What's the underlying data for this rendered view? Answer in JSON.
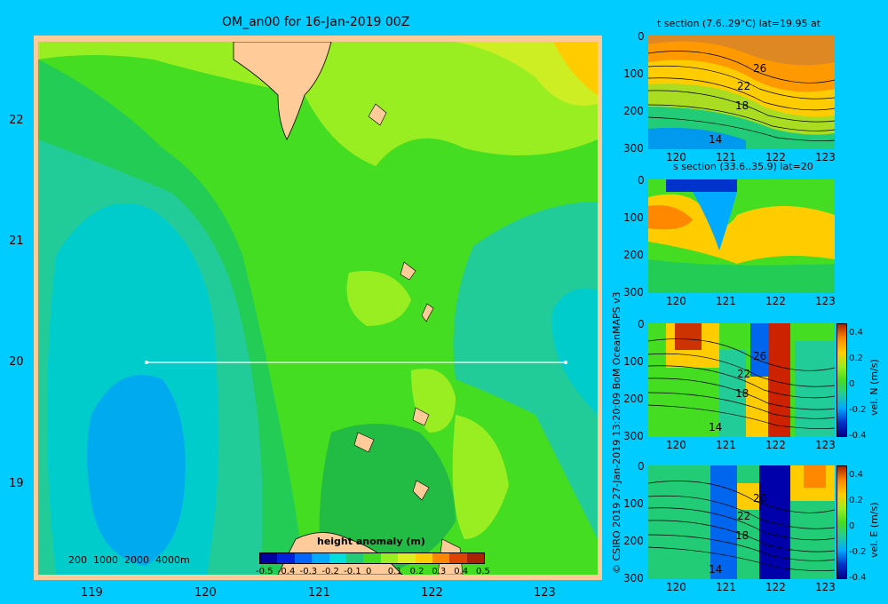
{
  "main_map": {
    "title": "OM_an00 for 16-Jan-2019 00Z",
    "lat_ticks": [
      "22",
      "21",
      "20",
      "19"
    ],
    "lon_ticks": [
      "119",
      "120",
      "121",
      "122",
      "123"
    ],
    "depth_legend": "200  1000  2000  4000m",
    "colorbar": {
      "label": "height anomaly (m)",
      "ticks": [
        "-0.5",
        "-0.4",
        "-0.3",
        "-0.2",
        "-0.1",
        "0",
        "0.1",
        "0.2",
        "0.3",
        "0.4",
        "0.5"
      ],
      "colors": [
        "#0000a0",
        "#0022dd",
        "#0066ff",
        "#00aaff",
        "#00dddd",
        "#22cc77",
        "#44dd22",
        "#99ee22",
        "#ddee22",
        "#ffcc00",
        "#ff8800",
        "#dd4400",
        "#aa2200"
      ]
    }
  },
  "panels": [
    {
      "id": "t",
      "title": "t section (7.6..29°C) lat=19.95 at",
      "y_ticks": [
        "0",
        "100",
        "200",
        "300"
      ],
      "x_ticks": [
        "120",
        "121",
        "122",
        "123"
      ],
      "contour_labels": [
        "26",
        "22",
        "18",
        "14"
      ]
    },
    {
      "id": "s",
      "title": "s section (33.6..35.9) lat=20",
      "y_ticks": [
        "0",
        "100",
        "200",
        "300"
      ],
      "x_ticks": [
        "120",
        "121",
        "122",
        "123"
      ],
      "contour_labels": []
    },
    {
      "id": "vn",
      "title": "",
      "y_ticks": [
        "0",
        "100",
        "200",
        "300"
      ],
      "x_ticks": [
        "120",
        "121",
        "122",
        "123"
      ],
      "contour_labels": [
        "26",
        "22",
        "18",
        "14"
      ],
      "colorbar_ticks": [
        "0.4",
        "0.2",
        "0",
        "-0.2",
        "-0.4"
      ],
      "colorbar_label": "vel. N (m/s)"
    },
    {
      "id": "ve",
      "title": "",
      "y_ticks": [
        "0",
        "100",
        "200",
        "300"
      ],
      "x_ticks": [
        "120",
        "121",
        "122",
        "123"
      ],
      "contour_labels": [
        "26",
        "22",
        "18",
        "14"
      ],
      "colorbar_ticks": [
        "0.4",
        "0.2",
        "0",
        "-0.2",
        "-0.4"
      ],
      "colorbar_label": "vel. E (m/s)"
    }
  ],
  "credit": "© CSIRO 2019   27-Jan-2019 13:20:09 BoM OceanMAPS v3"
}
